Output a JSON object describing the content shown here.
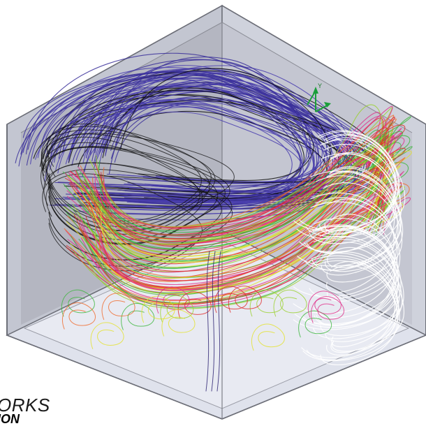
{
  "scene": {
    "triad_label": "Y",
    "colors": {
      "box_face_left": "#b9bcc7",
      "box_face_right": "#c9ccd6",
      "box_floor": "#d8dbe6",
      "box_edge": "#6d6f78",
      "streamline_palette": [
        "#3a2f9a",
        "#4b3fb0",
        "#2a2070",
        "#111111",
        "#3cb63c",
        "#9ad12c",
        "#e3e22a",
        "#f06a2a",
        "#e02a2a",
        "#e0308a",
        "#ffffff"
      ]
    }
  },
  "watermark": {
    "top": "ORKS",
    "bottom": "ION"
  }
}
